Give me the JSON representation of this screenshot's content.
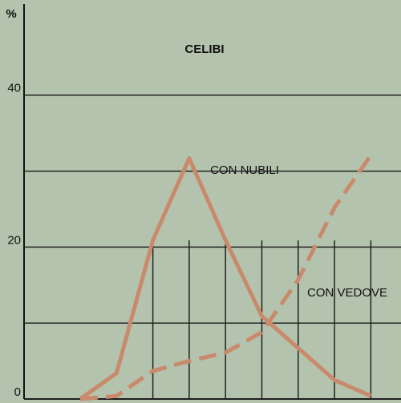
{
  "chart_data": {
    "type": "line",
    "title": "CELIBI",
    "y_label": "%",
    "categories": [
      null,
      null,
      null,
      null,
      null,
      null,
      null,
      null,
      null
    ],
    "series": [
      {
        "name": "CON NUBILI",
        "color": "#c98a6c",
        "dash": false,
        "values": [
          0,
          3.4,
          20.9,
          31.7,
          20.9,
          10.9,
          6.7,
          2.5,
          0.4
        ]
      },
      {
        "name": "CON VEDOVE",
        "color": "#c98a6c",
        "dash": true,
        "values": [
          0,
          0.4,
          3.7,
          5.0,
          6.1,
          8.8,
          15.7,
          25.2,
          32.1
        ]
      }
    ],
    "ylim": [
      0,
      52
    ],
    "yticks": [
      0,
      {
        "value": 10,
        "label": null
      },
      20,
      {
        "value": 30,
        "label": null
      },
      40
    ],
    "grid": true
  }
}
